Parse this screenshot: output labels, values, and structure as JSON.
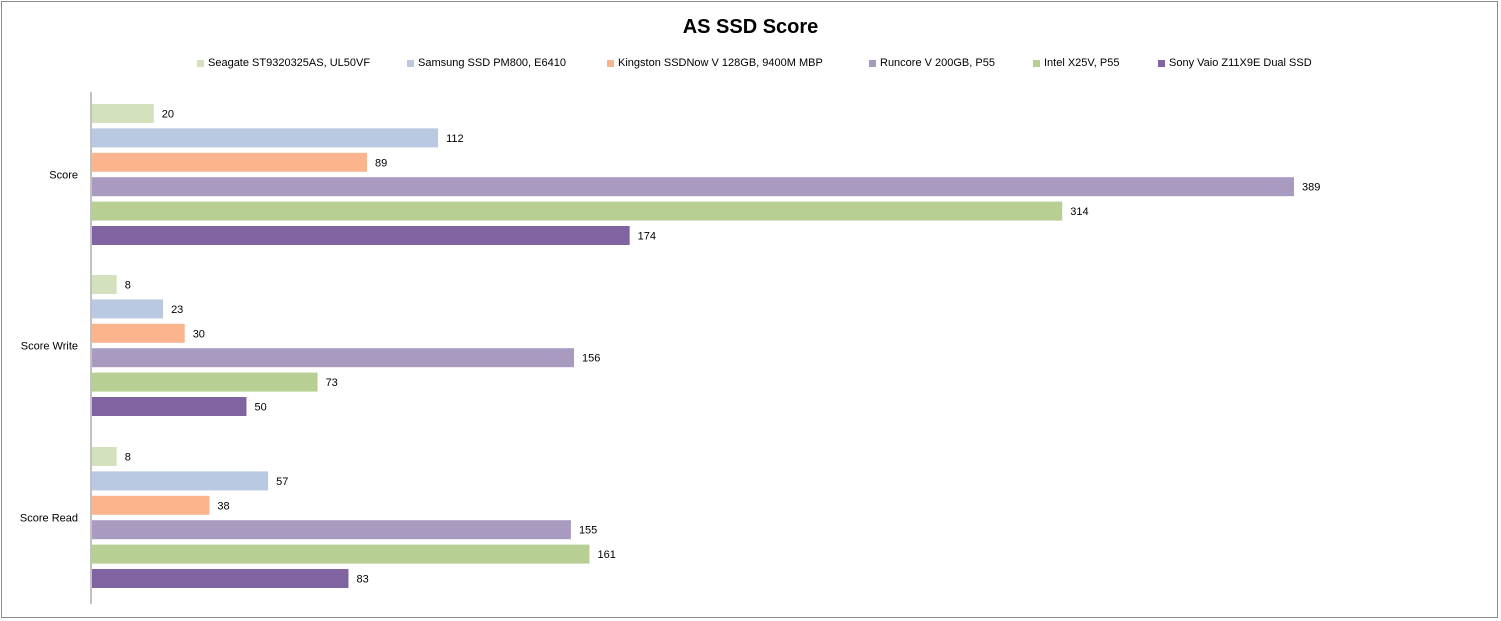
{
  "chart_data": {
    "type": "bar",
    "orientation": "horizontal",
    "title": "AS SSD Score",
    "categories": [
      "Score",
      "Score Write",
      "Score Read"
    ],
    "series": [
      {
        "name": "Seagate ST9320325AS, UL50VF",
        "color": "#d3e1bf",
        "values": [
          20,
          8,
          8
        ]
      },
      {
        "name": "Samsung SSD PM800, E6410",
        "color": "#b9c9e2",
        "values": [
          112,
          23,
          57
        ]
      },
      {
        "name": "Kingston SSDNow  V 128GB, 9400M MBP",
        "color": "#fab48e",
        "values": [
          89,
          30,
          38
        ]
      },
      {
        "name": "Runcore V 200GB, P55",
        "color": "#a99bbf",
        "values": [
          389,
          156,
          155
        ]
      },
      {
        "name": "Intel X25V, P55",
        "color": "#b8cf94",
        "values": [
          314,
          73,
          161
        ]
      },
      {
        "name": "Sony Vaio Z11X9E Dual SSD",
        "color": "#8064a2",
        "values": [
          174,
          50,
          83
        ]
      }
    ],
    "xlim": [
      0,
      389
    ],
    "grid": false,
    "legend_position": "top"
  }
}
